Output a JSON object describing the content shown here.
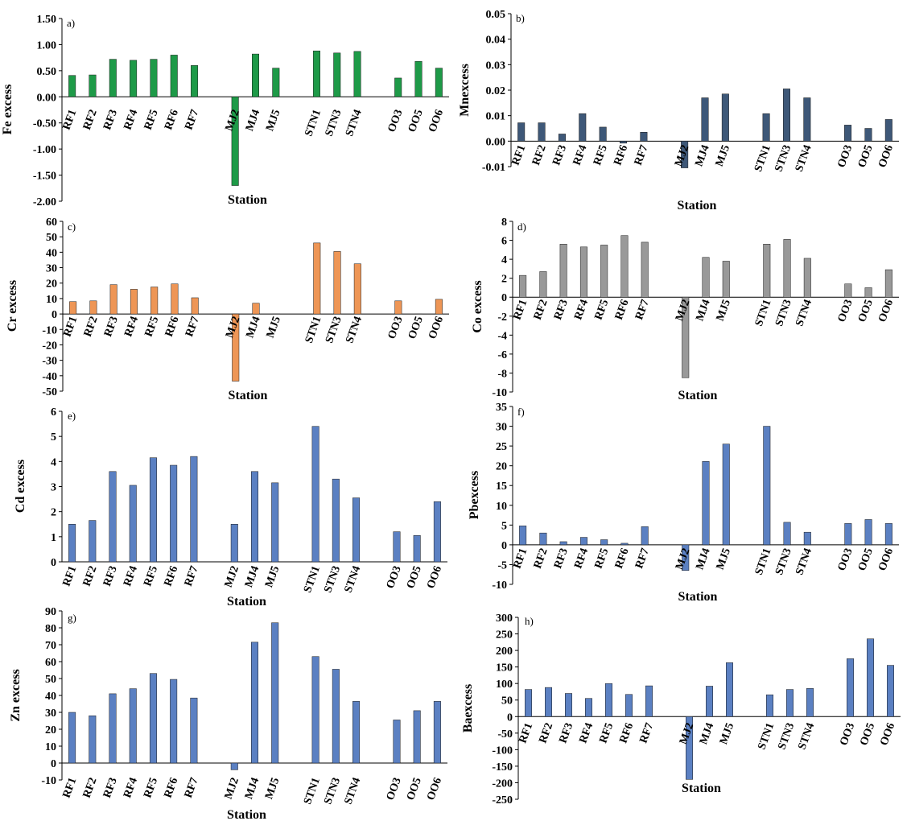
{
  "chart_data": [
    {
      "id": "a",
      "type": "bar",
      "panel_label": "a)",
      "title": "",
      "xlabel": "Station",
      "ylabel": "Fe excess",
      "ylim": [
        -2.0,
        1.5
      ],
      "yticks": [
        -2.0,
        -1.5,
        -1.0,
        -0.5,
        0.0,
        0.5,
        1.0,
        1.5
      ],
      "ytick_decimals": 2,
      "grid": false,
      "legend": "none",
      "color": "#1e9a48",
      "categories": [
        "RF1",
        "RF2",
        "RF3",
        "RF4",
        "RF5",
        "RF6",
        "RF7",
        "MJ2",
        "MJ4",
        "MJ5",
        "STN1",
        "STN3",
        "STN4",
        "OO3",
        "OO5",
        "OO6"
      ],
      "values": [
        0.41,
        0.42,
        0.72,
        0.7,
        0.72,
        0.8,
        0.6,
        -1.7,
        0.82,
        0.55,
        0.88,
        0.84,
        0.87,
        0.36,
        0.68,
        0.55
      ]
    },
    {
      "id": "b",
      "type": "bar",
      "panel_label": "b)",
      "title": "",
      "xlabel": "Station",
      "ylabel": "Mnexcess",
      "ylim": [
        -0.01,
        0.05
      ],
      "yticks": [
        -0.01,
        0.0,
        0.01,
        0.02,
        0.03,
        0.04,
        0.05
      ],
      "ytick_decimals": 2,
      "grid": false,
      "legend": "none",
      "color": "#3e5878",
      "categories": [
        "RF1",
        "RF2",
        "RF3",
        "RF4",
        "RF5",
        "RF6",
        "RF7",
        "MJ2",
        "MJ4",
        "MJ5",
        "STN1",
        "STN3",
        "STN4",
        "OO3",
        "OO5",
        "OO6"
      ],
      "values": [
        0.0072,
        0.0072,
        0.0028,
        0.0108,
        0.0055,
        -0.0008,
        0.0035,
        -0.0105,
        0.017,
        0.0185,
        0.0108,
        0.0205,
        0.017,
        0.0063,
        0.005,
        0.0085
      ]
    },
    {
      "id": "c",
      "type": "bar",
      "panel_label": "c)",
      "title": "",
      "xlabel": "Station",
      "ylabel": "Cr excess",
      "ylim": [
        -50,
        60
      ],
      "yticks": [
        -50,
        -40,
        -30,
        -20,
        -10,
        0,
        10,
        20,
        30,
        40,
        50,
        60
      ],
      "ytick_decimals": 0,
      "grid": false,
      "legend": "none",
      "color": "#ee9656",
      "categories": [
        "RF1",
        "RF2",
        "RF3",
        "RF4",
        "RF5",
        "RF6",
        "RF7",
        "MJ2",
        "MJ4",
        "MJ5",
        "STN1",
        "STN3",
        "STN4",
        "OO3",
        "OO5",
        "OO6"
      ],
      "values": [
        8,
        8.5,
        19,
        16,
        17.5,
        19.5,
        10.5,
        -43.5,
        7,
        0,
        46,
        40.5,
        32.5,
        8.5,
        0,
        9.5
      ]
    },
    {
      "id": "d",
      "type": "bar",
      "panel_label": "d)",
      "title": "",
      "xlabel": "Station",
      "ylabel": "Co excess",
      "ylim": [
        -10,
        8
      ],
      "yticks": [
        -10,
        -8,
        -6,
        -4,
        -2,
        0,
        2,
        4,
        6,
        8
      ],
      "ytick_decimals": 0,
      "grid": false,
      "legend": "none",
      "color": "#999999",
      "categories": [
        "RF1",
        "RF2",
        "RF3",
        "RF4",
        "RF5",
        "RF6",
        "RF7",
        "MJ2",
        "MJ4",
        "MJ5",
        "STN1",
        "STN3",
        "STN4",
        "OO3",
        "OO5",
        "OO6"
      ],
      "values": [
        2.3,
        2.7,
        5.6,
        5.3,
        5.5,
        6.5,
        5.8,
        -8.5,
        4.2,
        3.8,
        5.6,
        6.1,
        4.1,
        1.4,
        1.0,
        2.9
      ]
    },
    {
      "id": "e",
      "type": "bar",
      "panel_label": "e)",
      "title": "",
      "xlabel": "Station",
      "ylabel": "Cd excess",
      "ylim": [
        0,
        6
      ],
      "yticks": [
        0,
        1,
        2,
        3,
        4,
        5,
        6
      ],
      "ytick_decimals": 0,
      "grid": false,
      "legend": "none",
      "color": "#5b80c2",
      "categories": [
        "RF1",
        "RF2",
        "RF3",
        "RF4",
        "RF5",
        "RF6",
        "RF7",
        "MJ2",
        "MJ4",
        "MJ5",
        "STN1",
        "STN3",
        "STN4",
        "OO3",
        "OO5",
        "OO6"
      ],
      "values": [
        1.5,
        1.65,
        3.6,
        3.05,
        4.15,
        3.85,
        4.2,
        1.5,
        3.6,
        3.15,
        5.4,
        3.3,
        2.55,
        1.2,
        1.05,
        2.4
      ]
    },
    {
      "id": "f",
      "type": "bar",
      "panel_label": "f)",
      "title": "",
      "xlabel": "Station",
      "ylabel": "Pbexcess",
      "ylim": [
        -10,
        35
      ],
      "yticks": [
        -10,
        -5,
        0,
        5,
        10,
        15,
        20,
        25,
        30,
        35
      ],
      "ytick_decimals": 0,
      "grid": false,
      "legend": "none",
      "color": "#5b80c2",
      "categories": [
        "RF1",
        "RF2",
        "RF3",
        "RF4",
        "RF5",
        "RF6",
        "RF7",
        "MJ2",
        "MJ4",
        "MJ5",
        "STN1",
        "STN3",
        "STN4",
        "OO3",
        "OO5",
        "OO6"
      ],
      "values": [
        4.8,
        3.0,
        0.8,
        1.9,
        1.3,
        0.4,
        4.6,
        -6.5,
        21.1,
        25.5,
        30.0,
        5.7,
        3.2,
        5.4,
        6.4,
        5.4
      ]
    },
    {
      "id": "g",
      "type": "bar",
      "panel_label": "g)",
      "title": "",
      "xlabel": "Station",
      "ylabel": "Zn excess",
      "ylim": [
        -10,
        90
      ],
      "yticks": [
        -10,
        0,
        10,
        20,
        30,
        40,
        50,
        60,
        70,
        80,
        90
      ],
      "ytick_decimals": 0,
      "grid": false,
      "legend": "none",
      "color": "#5b80c2",
      "categories": [
        "RF1",
        "RF2",
        "RF3",
        "RF4",
        "RF5",
        "RF6",
        "RF7",
        "MJ2",
        "MJ4",
        "MJ5",
        "STN1",
        "STN3",
        "STN4",
        "OO3",
        "OO5",
        "OO6"
      ],
      "values": [
        30,
        28,
        41,
        44,
        53,
        49.5,
        38.5,
        -4,
        71.5,
        83,
        63,
        55.5,
        36.5,
        25.5,
        31,
        36.5
      ]
    },
    {
      "id": "h",
      "type": "bar",
      "panel_label": "h)",
      "title": "",
      "xlabel": "Station",
      "ylabel": "Baexcess",
      "ylim": [
        -250,
        300
      ],
      "yticks": [
        -250,
        -200,
        -150,
        -100,
        -50,
        0,
        50,
        100,
        150,
        200,
        250,
        300
      ],
      "ytick_decimals": 0,
      "grid": false,
      "legend": "none",
      "color": "#5b80c2",
      "categories": [
        "RF1",
        "RF2",
        "RF3",
        "RF4",
        "RF5",
        "RF6",
        "RF7",
        "MJ2",
        "MJ4",
        "MJ5",
        "STN1",
        "STN3",
        "STN4",
        "OO3",
        "OO5",
        "OO6"
      ],
      "values": [
        82,
        88,
        70,
        55,
        100,
        67,
        93,
        -190,
        92,
        163,
        66,
        82,
        85,
        175,
        235,
        155
      ]
    }
  ]
}
